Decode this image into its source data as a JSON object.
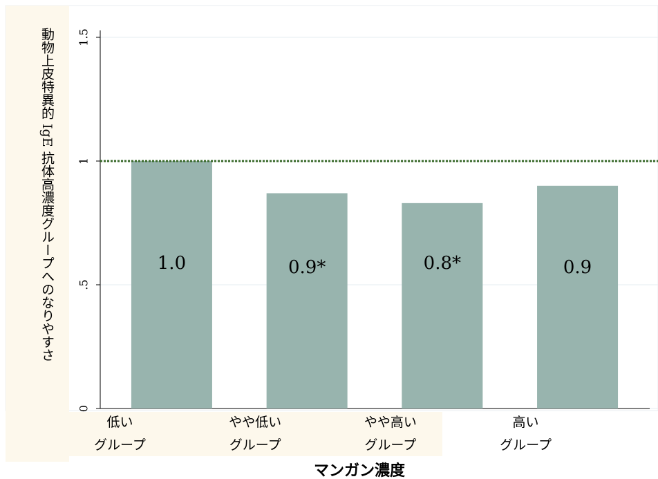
{
  "chart_data": {
    "type": "bar",
    "y_label": "動物上皮特異的 IgE 抗体高濃度グループへのなりやすさ",
    "x_label": "マンガン濃度",
    "categories": [
      [
        "低い",
        "グループ"
      ],
      [
        "やや低い",
        "グループ"
      ],
      [
        "やや高い",
        "グループ"
      ],
      [
        "高い",
        "グループ"
      ]
    ],
    "values": [
      1.0,
      0.87,
      0.83,
      0.9
    ],
    "value_labels": [
      "1.0",
      "0.9*",
      "0.8*",
      "0.9"
    ],
    "color": "#98b4ae",
    "ylim": [
      0,
      1.5
    ],
    "yticks": [
      0,
      {
        "value": 0.5,
        "label": ".5"
      },
      1,
      1.5
    ],
    "grid": true,
    "reference_line": {
      "value": 1,
      "color": "#3a6a2a"
    }
  }
}
